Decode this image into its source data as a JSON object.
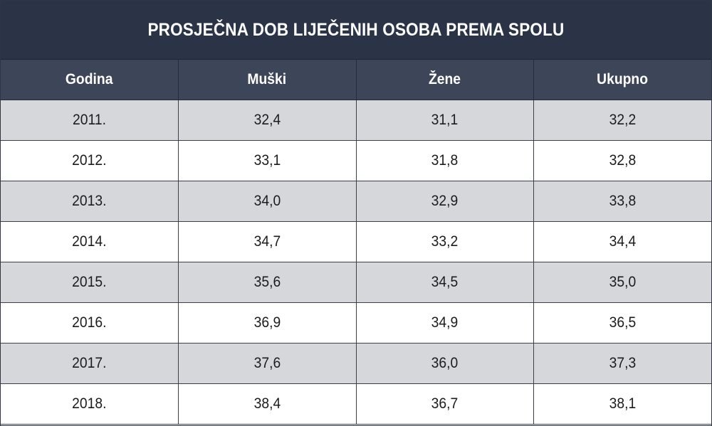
{
  "chart_data": {
    "type": "table",
    "title": "PROSJEČNA DOB LIJEČENIH OSOBA PREMA SPOLU",
    "columns": [
      "Godina",
      "Muški",
      "Žene",
      "Ukupno"
    ],
    "rows": [
      [
        "2011.",
        "32,4",
        "31,1",
        "32,2"
      ],
      [
        "2012.",
        "33,1",
        "31,8",
        "32,8"
      ],
      [
        "2013.",
        "34,0",
        "32,9",
        "33,8"
      ],
      [
        "2014.",
        "34,7",
        "33,2",
        "34,4"
      ],
      [
        "2015.",
        "35,6",
        "34,5",
        "35,0"
      ],
      [
        "2016.",
        "36,9",
        "34,9",
        "36,5"
      ],
      [
        "2017.",
        "37,6",
        "36,0",
        "37,3"
      ],
      [
        "2018.",
        "38,4",
        "36,7",
        "38,1"
      ]
    ],
    "colors": {
      "title_background": "#2b3447",
      "header_background": "#3d4658",
      "stripe_background": "#d6d7db"
    }
  }
}
